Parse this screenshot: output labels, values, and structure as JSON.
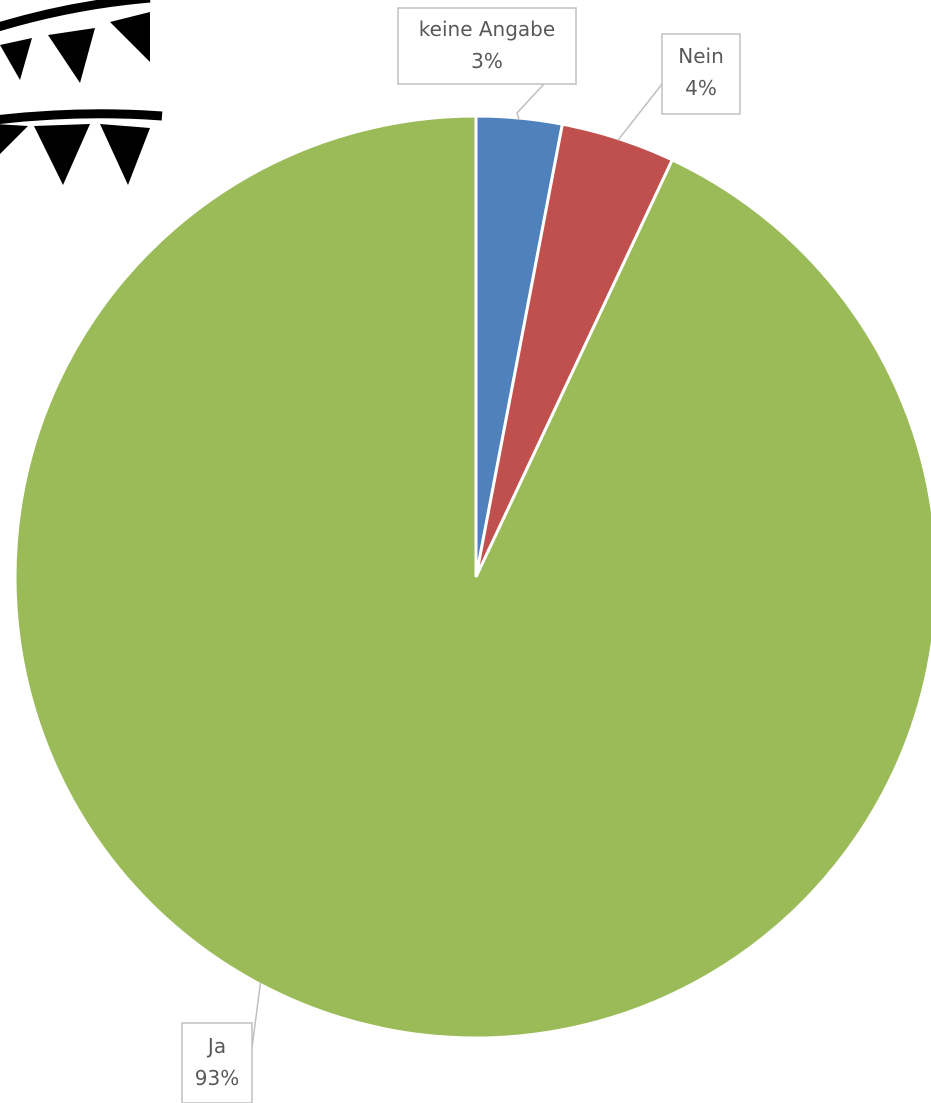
{
  "chart_data": {
    "type": "pie",
    "start_angle_deg": 0,
    "direction": "clockwise",
    "slices": [
      {
        "label": "keine Angabe",
        "value": 3,
        "value_label": "3%",
        "color": "#4f81bd"
      },
      {
        "label": "Nein",
        "value": 4,
        "value_label": "4%",
        "color": "#c0504d"
      },
      {
        "label": "Ja",
        "value": 93,
        "value_label": "93%",
        "color": "#9bbb59"
      }
    ]
  },
  "decoration": {
    "icon": "bunting-icon",
    "color": "#000000"
  }
}
